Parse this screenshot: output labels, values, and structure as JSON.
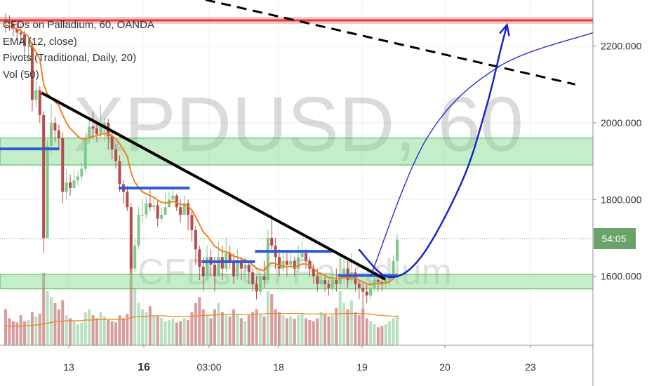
{
  "chart_data": {
    "type": "candlestick",
    "watermark": {
      "symbol": "XPDUSD, 60",
      "name": "CFDs on Palladium"
    },
    "legend": [
      "CFDs on Palladium, 60, OANDA",
      "EMA (12, close)",
      "Pivots (Traditional, Daily, 20)",
      "Vol (50)"
    ],
    "y_axis": {
      "ticks": [
        2200,
        2000,
        1800,
        1600
      ],
      "tick_labels": [
        "2200.000",
        "2000.000",
        "1800.000",
        "1600.000"
      ],
      "ylim": [
        1420,
        2320
      ]
    },
    "x_axis": {
      "ticks": [
        "13",
        "16",
        "03:00",
        "18",
        "19",
        "20",
        "23"
      ],
      "bold_ticks": [
        "16"
      ]
    },
    "price_badge": {
      "label": "54:05",
      "value": 1698,
      "color": "#6aa26a"
    },
    "colors": {
      "up": "#7fc98a",
      "down": "#b74b4b",
      "ema": "#f0821e",
      "zone": "#7fd88a",
      "pivot": "#2f5bd6",
      "resistance": "#e03a3a",
      "projection": "#1b23c8"
    },
    "zones": [
      {
        "from": 1890,
        "to": 1960
      },
      {
        "from": 1567,
        "to": 1605
      }
    ],
    "resistance_line": {
      "value": 2267
    },
    "pivot_levels": [
      {
        "from": 0.0,
        "to": 0.1,
        "value": 1932
      },
      {
        "from": 0.2,
        "to": 0.32,
        "value": 1830
      },
      {
        "from": 0.34,
        "to": 0.43,
        "value": 1638
      },
      {
        "from": 0.43,
        "to": 0.56,
        "value": 1665
      },
      {
        "from": 0.57,
        "to": 0.67,
        "value": 1602
      }
    ],
    "trendlines": [
      {
        "label": "descending",
        "points": [
          [
            0.07,
            2078
          ],
          [
            0.65,
            1592
          ]
        ],
        "color": "#000000"
      },
      {
        "label": "dashed-resistance",
        "points": [
          [
            0.32,
            2330
          ],
          [
            0.97,
            2100
          ]
        ],
        "color": "#000000",
        "dashed": true
      }
    ],
    "candles": [
      [
        2270,
        2262,
        2285,
        2235
      ],
      [
        2262,
        2258,
        2280,
        2240
      ],
      [
        2258,
        2245,
        2268,
        2225
      ],
      [
        2245,
        2235,
        2260,
        2212
      ],
      [
        2235,
        2230,
        2255,
        2205
      ],
      [
        2230,
        2200,
        2240,
        2180
      ],
      [
        2200,
        2200,
        2225,
        2160
      ],
      [
        2200,
        2060,
        2210,
        2030
      ],
      [
        2060,
        2085,
        2110,
        2040
      ],
      [
        2085,
        2020,
        2095,
        2000
      ],
      [
        2020,
        1700,
        2030,
        1660
      ],
      [
        1700,
        1940,
        1955,
        1700
      ],
      [
        1940,
        2000,
        2050,
        1920
      ],
      [
        2000,
        1980,
        2015,
        1950
      ],
      [
        1980,
        1960,
        1995,
        1930
      ],
      [
        1960,
        1820,
        1975,
        1790
      ],
      [
        1820,
        1845,
        1880,
        1800
      ],
      [
        1845,
        1830,
        1865,
        1810
      ],
      [
        1830,
        1850,
        1880,
        1830
      ],
      [
        1850,
        1860,
        1875,
        1835
      ],
      [
        1860,
        1880,
        1895,
        1850
      ],
      [
        1880,
        1960,
        1975,
        1870
      ],
      [
        1960,
        1990,
        2010,
        1945
      ],
      [
        1990,
        1985,
        2030,
        1960
      ],
      [
        1985,
        1970,
        2005,
        1950
      ],
      [
        1970,
        1990,
        2045,
        1960
      ],
      [
        1990,
        2000,
        2015,
        1950
      ],
      [
        2000,
        1965,
        2010,
        1930
      ],
      [
        1965,
        1930,
        1980,
        1905
      ],
      [
        1930,
        1900,
        1945,
        1880
      ],
      [
        1900,
        1840,
        1915,
        1820
      ],
      [
        1840,
        1820,
        1850,
        1790
      ],
      [
        1820,
        1780,
        1835,
        1770
      ],
      [
        1780,
        1620,
        1790,
        1610
      ],
      [
        1620,
        1680,
        1700,
        1610
      ],
      [
        1680,
        1760,
        1780,
        1670
      ],
      [
        1760,
        1760,
        1800,
        1740
      ],
      [
        1760,
        1790,
        1805,
        1750
      ],
      [
        1790,
        1780,
        1830,
        1770
      ],
      [
        1780,
        1785,
        1810,
        1770
      ],
      [
        1785,
        1750,
        1800,
        1730
      ],
      [
        1750,
        1760,
        1780,
        1740
      ],
      [
        1760,
        1780,
        1815,
        1760
      ],
      [
        1780,
        1800,
        1820,
        1780
      ],
      [
        1800,
        1810,
        1830,
        1795
      ],
      [
        1810,
        1780,
        1815,
        1770
      ],
      [
        1780,
        1760,
        1800,
        1740
      ],
      [
        1760,
        1790,
        1810,
        1760
      ],
      [
        1790,
        1760,
        1800,
        1720
      ],
      [
        1760,
        1720,
        1770,
        1690
      ],
      [
        1720,
        1670,
        1730,
        1630
      ],
      [
        1670,
        1625,
        1680,
        1590
      ],
      [
        1625,
        1600,
        1650,
        1560
      ],
      [
        1600,
        1650,
        1680,
        1590
      ],
      [
        1650,
        1630,
        1670,
        1600
      ],
      [
        1630,
        1600,
        1650,
        1560
      ],
      [
        1600,
        1650,
        1690,
        1600
      ],
      [
        1650,
        1620,
        1680,
        1590
      ],
      [
        1620,
        1660,
        1700,
        1610
      ],
      [
        1660,
        1640,
        1680,
        1620
      ],
      [
        1640,
        1600,
        1660,
        1580
      ],
      [
        1600,
        1640,
        1670,
        1590
      ],
      [
        1640,
        1620,
        1650,
        1590
      ],
      [
        1620,
        1630,
        1650,
        1600
      ],
      [
        1630,
        1610,
        1640,
        1580
      ],
      [
        1610,
        1580,
        1620,
        1560
      ],
      [
        1580,
        1560,
        1600,
        1540
      ],
      [
        1560,
        1600,
        1620,
        1550
      ],
      [
        1600,
        1590,
        1640,
        1570
      ],
      [
        1590,
        1700,
        1720,
        1580
      ],
      [
        1700,
        1680,
        1760,
        1660
      ],
      [
        1680,
        1650,
        1700,
        1620
      ],
      [
        1650,
        1620,
        1670,
        1600
      ],
      [
        1620,
        1640,
        1660,
        1610
      ],
      [
        1640,
        1630,
        1660,
        1600
      ],
      [
        1630,
        1640,
        1660,
        1620
      ],
      [
        1640,
        1620,
        1650,
        1600
      ],
      [
        1620,
        1650,
        1680,
        1610
      ],
      [
        1650,
        1660,
        1690,
        1640
      ],
      [
        1660,
        1640,
        1670,
        1620
      ],
      [
        1640,
        1620,
        1650,
        1600
      ],
      [
        1620,
        1600,
        1630,
        1580
      ],
      [
        1600,
        1580,
        1620,
        1560
      ],
      [
        1580,
        1590,
        1610,
        1570
      ],
      [
        1590,
        1580,
        1600,
        1560
      ],
      [
        1580,
        1570,
        1590,
        1550
      ],
      [
        1570,
        1590,
        1610,
        1560
      ],
      [
        1590,
        1580,
        1620,
        1560
      ],
      [
        1580,
        1600,
        1660,
        1570
      ],
      [
        1600,
        1620,
        1650,
        1580
      ],
      [
        1620,
        1590,
        1640,
        1570
      ],
      [
        1590,
        1610,
        1660,
        1580
      ],
      [
        1610,
        1580,
        1620,
        1560
      ],
      [
        1580,
        1570,
        1590,
        1540
      ],
      [
        1570,
        1560,
        1580,
        1510
      ],
      [
        1560,
        1550,
        1580,
        1530
      ],
      [
        1550,
        1570,
        1590,
        1540
      ],
      [
        1570,
        1590,
        1600,
        1560
      ],
      [
        1590,
        1585,
        1600,
        1560
      ],
      [
        1585,
        1580,
        1600,
        1560
      ],
      [
        1580,
        1590,
        1610,
        1570
      ],
      [
        1590,
        1600,
        1610,
        1575
      ],
      [
        1600,
        1640,
        1655,
        1590
      ],
      [
        1640,
        1695,
        1710,
        1630
      ]
    ],
    "ema": [
      2255,
      2252,
      2248,
      2244,
      2240,
      2232,
      2225,
      2200,
      2185,
      2165,
      2100,
      2075,
      2065,
      2055,
      2045,
      2020,
      2000,
      1985,
      1975,
      1965,
      1958,
      1958,
      1962,
      1965,
      1966,
      1969,
      1972,
      1971,
      1966,
      1958,
      1945,
      1930,
      1912,
      1870,
      1845,
      1832,
      1820,
      1815,
      1810,
      1806,
      1798,
      1793,
      1791,
      1792,
      1795,
      1792,
      1787,
      1787,
      1783,
      1772,
      1755,
      1735,
      1715,
      1705,
      1692,
      1678,
      1672,
      1664,
      1664,
      1660,
      1652,
      1650,
      1645,
      1643,
      1638,
      1630,
      1620,
      1618,
      1614,
      1628,
      1635,
      1633,
      1627,
      1626,
      1625,
      1626,
      1624,
      1627,
      1632,
      1632,
      1628,
      1621,
      1610,
      1607,
      1602,
      1596,
      1595,
      1593,
      1594,
      1597,
      1596,
      1598,
      1595,
      1590,
      1585,
      1580,
      1578,
      1580,
      1581,
      1581,
      1583,
      1586,
      1593,
      1608
    ],
    "volume": [
      60,
      45,
      40,
      38,
      50,
      40,
      42,
      55,
      48,
      52,
      120,
      90,
      80,
      70,
      60,
      75,
      50,
      45,
      40,
      35,
      38,
      55,
      60,
      50,
      45,
      55,
      48,
      42,
      40,
      38,
      50,
      45,
      52,
      140,
      95,
      70,
      60,
      55,
      65,
      50,
      48,
      45,
      40,
      42,
      44,
      38,
      40,
      45,
      42,
      55,
      70,
      80,
      60,
      50,
      45,
      60,
      70,
      55,
      50,
      48,
      60,
      52,
      45,
      40,
      50,
      55,
      60,
      52,
      48,
      90,
      85,
      60,
      55,
      50,
      45,
      48,
      44,
      50,
      52,
      45,
      42,
      40,
      45,
      55,
      52,
      48,
      50,
      62,
      90,
      70,
      60,
      75,
      55,
      50,
      60,
      45,
      40,
      35,
      30,
      32,
      35,
      40,
      45,
      50
    ],
    "volume_ma": [
      32,
      32,
      32,
      32,
      32,
      32,
      33,
      33,
      34,
      34,
      36,
      37,
      38,
      39,
      40,
      40,
      41,
      41,
      41,
      41,
      41,
      42,
      42,
      42,
      43,
      43,
      43,
      43,
      43,
      43,
      43,
      43,
      44,
      46,
      47,
      48,
      48,
      48,
      49,
      49,
      49,
      49,
      49,
      48,
      48,
      48,
      48,
      48,
      48,
      48,
      49,
      49,
      50,
      50,
      50,
      50,
      51,
      51,
      51,
      51,
      51,
      51,
      51,
      51,
      51,
      51,
      52,
      52,
      52,
      53,
      53,
      53,
      53,
      53,
      53,
      53,
      53,
      53,
      53,
      52,
      52,
      52,
      52,
      52,
      52,
      52,
      52,
      52,
      53,
      53,
      53,
      53,
      53,
      53,
      53,
      52,
      52,
      51,
      50,
      50,
      49,
      49,
      48,
      48
    ],
    "projection_thin": {
      "points": [
        [
          0.625,
          1600
        ],
        [
          0.72,
          1960
        ],
        [
          0.84,
          2145
        ],
        [
          1.0,
          2235
        ]
      ]
    },
    "projection_bold": {
      "points": [
        [
          0.605,
          1670
        ],
        [
          0.655,
          1598
        ],
        [
          0.71,
          1650
        ],
        [
          0.78,
          1850
        ],
        [
          0.82,
          2040
        ],
        [
          0.845,
          2195
        ],
        [
          0.855,
          2255
        ]
      ],
      "arrow": true
    }
  }
}
